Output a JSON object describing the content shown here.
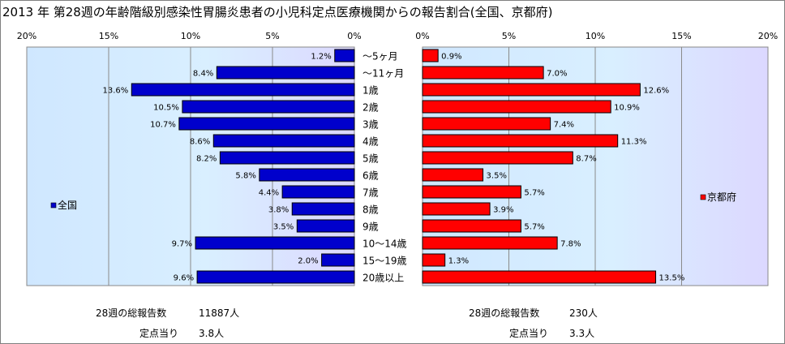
{
  "title": "2013 年 第28週の年齢階級別感染性胃腸炎患者の小児科定点医療機関からの報告割合(全国、京都府)",
  "chart_data": {
    "type": "bar",
    "orientation": "horizontal",
    "categories": [
      "～5ヶ月",
      "～11ヶ月",
      "1歳",
      "2歳",
      "3歳",
      "4歳",
      "5歳",
      "6歳",
      "7歳",
      "8歳",
      "9歳",
      "10～14歳",
      "15～19歳",
      "20歳以上"
    ],
    "series": [
      {
        "name": "全国",
        "color": "#0000cc",
        "values": [
          1.2,
          8.4,
          13.6,
          10.5,
          10.7,
          8.6,
          8.2,
          5.8,
          4.4,
          3.8,
          3.5,
          9.7,
          2.0,
          9.6
        ],
        "labels": [
          "1.2%",
          "8.4%",
          "13.6%",
          "10.5%",
          "10.7%",
          "8.6%",
          "8.2%",
          "5.8%",
          "4.4%",
          "3.8%",
          "3.5%",
          "9.7%",
          "2.0%",
          "9.6%"
        ]
      },
      {
        "name": "京都府",
        "color": "#ff0000",
        "values": [
          0.9,
          7.0,
          12.6,
          10.9,
          7.4,
          11.3,
          8.7,
          3.5,
          5.7,
          3.9,
          5.7,
          7.8,
          1.3,
          13.5
        ],
        "labels": [
          "0.9%",
          "7.0%",
          "12.6%",
          "10.9%",
          "7.4%",
          "11.3%",
          "8.7%",
          "3.5%",
          "5.7%",
          "3.9%",
          "5.7%",
          "7.8%",
          "1.3%",
          "13.5%"
        ]
      }
    ],
    "left_ticks": [
      "20%",
      "15%",
      "10%",
      "5%",
      "0%"
    ],
    "right_ticks": [
      "0%",
      "5%",
      "10%",
      "15%",
      "20%"
    ],
    "xlim": [
      0,
      20
    ],
    "grid": true,
    "legend_placement": "inside-left / inside-right"
  },
  "stats": {
    "national": {
      "total_label": "28週の総報告数",
      "total_value": "11887人",
      "per_label": "定点当り",
      "per_value": "3.8人"
    },
    "kyoto": {
      "total_label": "28週の総報告数",
      "total_value": "230人",
      "per_label": "定点当り",
      "per_value": "3.3人"
    }
  }
}
